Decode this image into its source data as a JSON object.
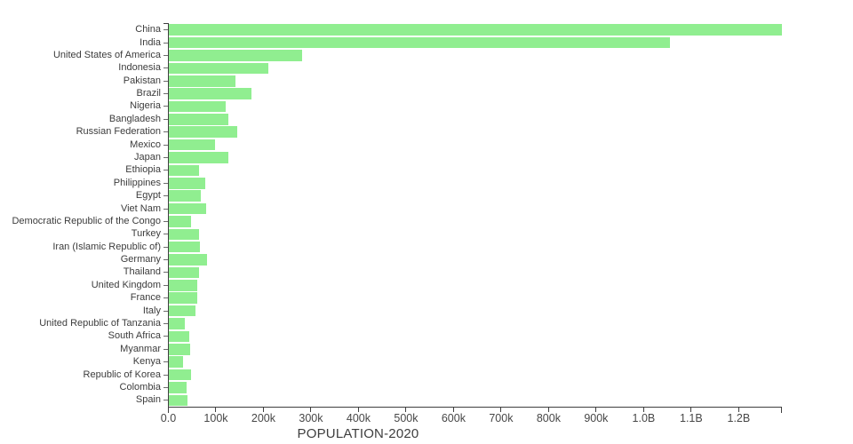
{
  "chart_data": {
    "type": "bar",
    "orientation": "horizontal",
    "title": "POPULATION-2020",
    "categories": [
      "China",
      "India",
      "United States of America",
      "Indonesia",
      "Pakistan",
      "Brazil",
      "Nigeria",
      "Bangladesh",
      "Russian Federation",
      "Mexico",
      "Japan",
      "Ethiopia",
      "Philippines",
      "Egypt",
      "Viet Nam",
      "Democratic Republic of the Congo",
      "Turkey",
      "Iran (Islamic Republic of)",
      "Germany",
      "Thailand",
      "United Kingdom",
      "France",
      "Italy",
      "United Republic of Tanzania",
      "South Africa",
      "Myanmar",
      "Kenya",
      "Republic of Korea",
      "Colombia",
      "Spain"
    ],
    "values": [
      1290,
      1055,
      280,
      210,
      140,
      173,
      120,
      126,
      144,
      97,
      126,
      64,
      76,
      68,
      79,
      46,
      63,
      65,
      81,
      63,
      59,
      59,
      57,
      33,
      43,
      45,
      30,
      46,
      38,
      39
    ],
    "x_tick_values": [
      0,
      100,
      200,
      300,
      400,
      500,
      600,
      700,
      800,
      900,
      1000,
      1100,
      1200
    ],
    "x_tick_labels": [
      "0.0",
      "100k",
      "200k",
      "300k",
      "400k",
      "500k",
      "600k",
      "700k",
      "800k",
      "900k",
      "1.0B",
      "1.1B",
      "1.2B"
    ],
    "xlim": [
      0,
      1290
    ],
    "grid": false,
    "legend_position": "none"
  },
  "colors": {
    "bar": "#90ee90",
    "axis": "#3f3f3f",
    "y_tick": "#6e6e6e",
    "label_text": "#3c3c3c",
    "tick_text": "#474747",
    "title_text": "#3e3e3e",
    "background": "#ffffff"
  }
}
